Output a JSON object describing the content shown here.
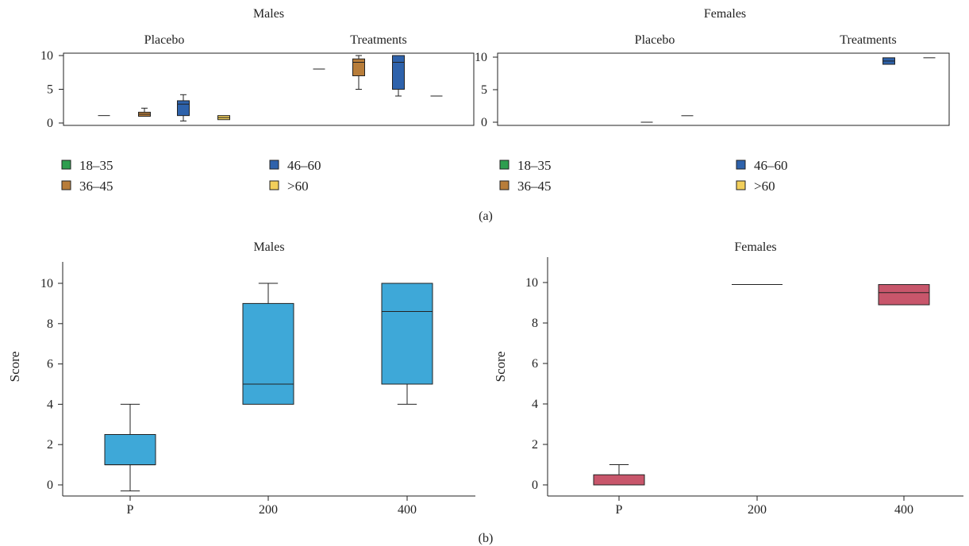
{
  "chart_data": [
    {
      "type": "box",
      "panel": "a-left",
      "title": "Males",
      "group_labels": [
        "Placebo",
        "Treatments"
      ],
      "ylim": [
        0,
        10
      ],
      "yticks": [
        "0",
        "5",
        "10"
      ],
      "grid": false,
      "legend": {
        "placement": "below",
        "entries": [
          {
            "label": "18–35",
            "color": "#2e9e4f"
          },
          {
            "label": "46–60",
            "color": "#2e62ab"
          },
          {
            "label": "36–45",
            "color": "#b87d3a"
          },
          {
            "label": ">60",
            "color": "#f2cf5b"
          }
        ]
      },
      "boxes": [
        {
          "group": "Placebo",
          "age": "18–35",
          "color": "#2e9e4f",
          "min": 1.1,
          "q1": 1.1,
          "median": 1.1,
          "q3": 1.1,
          "max": 1.1
        },
        {
          "group": "Placebo",
          "age": "36–45",
          "color": "#b87d3a",
          "min": 1.0,
          "q1": 1.0,
          "median": 1.3,
          "q3": 1.6,
          "max": 2.2
        },
        {
          "group": "Placebo",
          "age": "46–60",
          "color": "#2e62ab",
          "min": 0.3,
          "q1": 1.1,
          "median": 2.8,
          "q3": 3.3,
          "max": 4.2
        },
        {
          "group": "Placebo",
          "age": ">60",
          "color": "#f2cf5b",
          "min": 0.5,
          "q1": 0.5,
          "median": 0.8,
          "q3": 1.1,
          "max": 1.1
        },
        {
          "group": "Treatments",
          "age": "18–35",
          "color": "#2e9e4f",
          "min": 8.0,
          "q1": 8.0,
          "median": 8.0,
          "q3": 8.0,
          "max": 8.0
        },
        {
          "group": "Treatments",
          "age": "36–45",
          "color": "#b87d3a",
          "min": 5.0,
          "q1": 7.0,
          "median": 9.0,
          "q3": 9.5,
          "max": 10.0
        },
        {
          "group": "Treatments",
          "age": "46–60",
          "color": "#2e62ab",
          "min": 4.0,
          "q1": 5.0,
          "median": 9.0,
          "q3": 10.0,
          "max": 10.0
        },
        {
          "group": "Treatments",
          "age": ">60",
          "color": "#f2cf5b",
          "min": 4.0,
          "q1": 4.0,
          "median": 4.0,
          "q3": 4.0,
          "max": 4.0
        }
      ]
    },
    {
      "type": "box",
      "panel": "a-right",
      "title": "Females",
      "group_labels": [
        "Placebo",
        "Treatments"
      ],
      "ylim": [
        0,
        10
      ],
      "yticks": [
        "0",
        "5",
        "10"
      ],
      "grid": false,
      "legend": {
        "placement": "below",
        "entries": [
          {
            "label": "18–35",
            "color": "#2e9e4f"
          },
          {
            "label": "46–60",
            "color": "#2e62ab"
          },
          {
            "label": "36–45",
            "color": "#b87d3a"
          },
          {
            "label": ">60",
            "color": "#f2cf5b"
          }
        ]
      },
      "boxes": [
        {
          "group": "Placebo",
          "age": "46–60",
          "color": "#2e62ab",
          "min": 0.0,
          "q1": 0.0,
          "median": 0.0,
          "q3": 0.0,
          "max": 0.0
        },
        {
          "group": "Placebo",
          "age": ">60",
          "color": "#f2cf5b",
          "min": 1.0,
          "q1": 1.0,
          "median": 1.0,
          "q3": 1.0,
          "max": 1.0
        },
        {
          "group": "Treatments",
          "age": "46–60",
          "color": "#2e62ab",
          "min": 8.9,
          "q1": 8.9,
          "median": 9.4,
          "q3": 9.9,
          "max": 9.9
        },
        {
          "group": "Treatments",
          "age": ">60",
          "color": "#f2cf5b",
          "min": 9.9,
          "q1": 9.9,
          "median": 9.9,
          "q3": 9.9,
          "max": 9.9
        }
      ]
    },
    {
      "type": "box",
      "panel": "b-left",
      "title": "Males",
      "ylabel": "Score",
      "categories": [
        "P",
        "200",
        "400"
      ],
      "ylim": [
        0,
        10
      ],
      "yticks": [
        "0",
        "2",
        "4",
        "6",
        "8",
        "10"
      ],
      "grid": false,
      "color": "#3ea8d8",
      "boxes": [
        {
          "category": "P",
          "min": -0.3,
          "q1": 1.0,
          "median": 1.0,
          "q3": 2.5,
          "max": 4.0
        },
        {
          "category": "200",
          "min": 4.0,
          "q1": 4.0,
          "median": 5.0,
          "q3": 9.0,
          "max": 10.0
        },
        {
          "category": "400",
          "min": 4.0,
          "q1": 5.0,
          "median": 8.6,
          "q3": 10.0,
          "max": 10.0
        }
      ]
    },
    {
      "type": "box",
      "panel": "b-right",
      "title": "Females",
      "ylabel": "Score",
      "categories": [
        "P",
        "200",
        "400"
      ],
      "ylim": [
        0,
        10
      ],
      "yticks": [
        "0",
        "2",
        "4",
        "6",
        "8",
        "10"
      ],
      "grid": false,
      "color": "#c8566b",
      "boxes": [
        {
          "category": "P",
          "min": 0.0,
          "q1": 0.0,
          "median": 0.0,
          "q3": 0.5,
          "max": 1.0
        },
        {
          "category": "200",
          "min": 9.9,
          "q1": 9.9,
          "median": 9.9,
          "q3": 9.9,
          "max": 9.9
        },
        {
          "category": "400",
          "min": 8.9,
          "q1": 8.9,
          "median": 9.5,
          "q3": 9.9,
          "max": 9.9
        }
      ]
    }
  ],
  "panel_labels": {
    "a": "(a)",
    "b": "(b)"
  }
}
